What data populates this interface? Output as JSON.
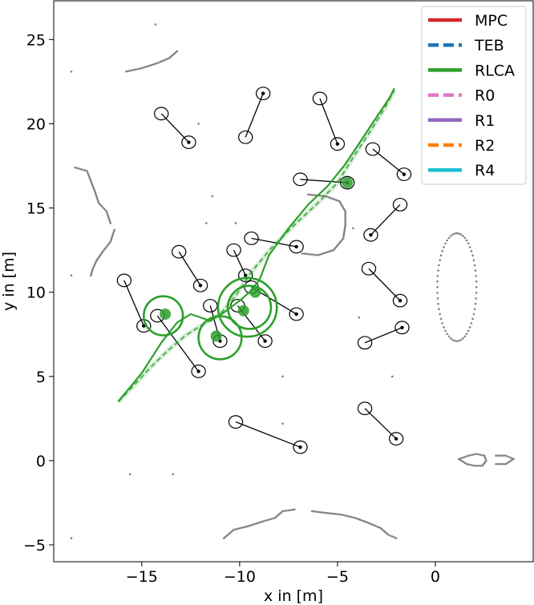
{
  "chart_data": {
    "type": "scatter",
    "xlabel": "x in [m]",
    "ylabel": "y in [m]",
    "xlim": [
      -19.5,
      5.0
    ],
    "ylim": [
      -6.0,
      27.3
    ],
    "xticks": [
      -15,
      -10,
      -5,
      0
    ],
    "xtick_labels": [
      "−15",
      "−10",
      "−5",
      "0"
    ],
    "yticks": [
      -5,
      0,
      5,
      10,
      15,
      20,
      25
    ],
    "ytick_labels": [
      "−5",
      "0",
      "5",
      "10",
      "15",
      "20",
      "25"
    ],
    "grid": false,
    "legend_position": "top-right",
    "legend": [
      {
        "label": "MPC",
        "color": "#d62728",
        "style": "solid"
      },
      {
        "label": "TEB",
        "color": "#1f77b4",
        "style": "dashed"
      },
      {
        "label": "RLCA",
        "color": "#2ca02c",
        "style": "solid"
      },
      {
        "label": "R0",
        "color": "#e377c2",
        "style": "dashed"
      },
      {
        "label": "R1",
        "color": "#9467bd",
        "style": "solid"
      },
      {
        "label": "R2",
        "color": "#ff7f0e",
        "style": "dashed"
      },
      {
        "label": "R4",
        "color": "#17becf",
        "style": "solid"
      }
    ],
    "rlca_path": [
      [
        -16.2,
        3.5
      ],
      [
        -15.0,
        5.2
      ],
      [
        -14.0,
        7.0
      ],
      [
        -13.2,
        8.2
      ],
      [
        -12.5,
        8.7
      ],
      [
        -11.5,
        8.3
      ],
      [
        -10.8,
        8.8
      ],
      [
        -10.0,
        9.5
      ],
      [
        -9.5,
        10.0
      ],
      [
        -9.0,
        10.7
      ],
      [
        -8.8,
        11.3
      ],
      [
        -8.5,
        12.2
      ],
      [
        -7.5,
        13.8
      ],
      [
        -6.5,
        15.2
      ],
      [
        -5.5,
        16.3
      ],
      [
        -4.6,
        17.6
      ],
      [
        -3.8,
        19.0
      ],
      [
        -3.0,
        20.4
      ],
      [
        -2.3,
        21.6
      ],
      [
        -2.1,
        22.1
      ]
    ],
    "rlca_path_alt": [
      [
        -16.2,
        3.5
      ],
      [
        -15.3,
        4.6
      ],
      [
        -14.5,
        5.6
      ],
      [
        -13.7,
        6.5
      ],
      [
        -12.8,
        7.4
      ],
      [
        -12.0,
        8.0
      ],
      [
        -11.0,
        8.7
      ],
      [
        -10.2,
        9.8
      ],
      [
        -9.4,
        11.2
      ],
      [
        -8.4,
        12.6
      ],
      [
        -7.2,
        14.0
      ],
      [
        -6.0,
        15.3
      ],
      [
        -5.0,
        16.5
      ],
      [
        -4.2,
        18.0
      ],
      [
        -3.3,
        19.6
      ],
      [
        -2.6,
        20.9
      ],
      [
        -2.1,
        22.0
      ]
    ],
    "rlca_circles": [
      {
        "x": -13.9,
        "y": 8.6,
        "r": 1.0
      },
      {
        "x": -11.0,
        "y": 7.3,
        "r": 1.1
      },
      {
        "x": -9.6,
        "y": 9.1,
        "r": 1.5
      },
      {
        "x": -9.5,
        "y": 9.1,
        "r": 1.1
      }
    ],
    "rlca_dots": [
      {
        "x": -13.8,
        "y": 8.7
      },
      {
        "x": -11.2,
        "y": 7.4
      },
      {
        "x": -9.8,
        "y": 8.9
      },
      {
        "x": -9.2,
        "y": 10.0
      },
      {
        "x": -4.5,
        "y": 16.5
      }
    ],
    "agents": [
      {
        "x1": -14.0,
        "y1": 20.6,
        "x2": -12.6,
        "y2": 18.9
      },
      {
        "x1": -9.7,
        "y1": 19.2,
        "x2": -8.8,
        "y2": 21.8
      },
      {
        "x1": -5.9,
        "y1": 21.5,
        "x2": -5.0,
        "y2": 18.8
      },
      {
        "x1": -3.2,
        "y1": 18.5,
        "x2": -1.6,
        "y2": 17.0
      },
      {
        "x1": -6.9,
        "y1": 16.7,
        "x2": -4.5,
        "y2": 16.5
      },
      {
        "x1": -1.8,
        "y1": 15.2,
        "x2": -3.3,
        "y2": 13.4
      },
      {
        "x1": -13.1,
        "y1": 12.4,
        "x2": -12.0,
        "y2": 10.4
      },
      {
        "x1": -10.3,
        "y1": 12.5,
        "x2": -9.7,
        "y2": 11.0
      },
      {
        "x1": -9.4,
        "y1": 13.2,
        "x2": -7.1,
        "y2": 12.7
      },
      {
        "x1": -3.4,
        "y1": 11.4,
        "x2": -1.8,
        "y2": 9.5
      },
      {
        "x1": -15.9,
        "y1": 10.7,
        "x2": -14.9,
        "y2": 8.0
      },
      {
        "x1": -11.5,
        "y1": 9.2,
        "x2": -11.0,
        "y2": 7.1
      },
      {
        "x1": -9.4,
        "y1": 10.3,
        "x2": -7.1,
        "y2": 8.7
      },
      {
        "x1": -10.1,
        "y1": 9.2,
        "x2": -8.7,
        "y2": 7.1
      },
      {
        "x1": -14.2,
        "y1": 8.6,
        "x2": -12.1,
        "y2": 5.3
      },
      {
        "x1": -3.6,
        "y1": 7.0,
        "x2": -1.7,
        "y2": 7.9
      },
      {
        "x1": -3.6,
        "y1": 3.1,
        "x2": -2.0,
        "y2": 1.3
      },
      {
        "x1": -10.2,
        "y1": 2.3,
        "x2": -6.9,
        "y2": 0.8
      }
    ],
    "obstacle_arcs": [
      {
        "points": [
          [
            -15.8,
            23.1
          ],
          [
            -15.0,
            23.3
          ],
          [
            -14.2,
            23.6
          ],
          [
            -13.6,
            23.9
          ],
          [
            -13.2,
            24.3
          ]
        ]
      },
      {
        "points": [
          [
            -18.4,
            17.4
          ],
          [
            -17.8,
            17.2
          ],
          [
            -17.6,
            16.6
          ],
          [
            -17.4,
            16.0
          ],
          [
            -17.2,
            15.3
          ],
          [
            -16.8,
            14.8
          ],
          [
            -16.6,
            14.1
          ]
        ]
      },
      {
        "points": [
          [
            -16.4,
            13.7
          ],
          [
            -16.6,
            13.0
          ],
          [
            -17.0,
            12.4
          ],
          [
            -17.3,
            11.9
          ],
          [
            -17.5,
            11.4
          ],
          [
            -17.6,
            11.0
          ]
        ]
      },
      {
        "points": [
          [
            -6.5,
            15.8
          ],
          [
            -5.6,
            15.7
          ],
          [
            -4.9,
            15.4
          ],
          [
            -4.6,
            14.8
          ],
          [
            -4.6,
            14.0
          ],
          [
            -4.7,
            13.2
          ],
          [
            -5.2,
            12.5
          ],
          [
            -6.0,
            12.2
          ],
          [
            -6.8,
            12.3
          ]
        ]
      },
      {
        "points": [
          [
            -10.8,
            -4.6
          ],
          [
            -10.3,
            -4.1
          ],
          [
            -9.6,
            -3.9
          ],
          [
            -8.8,
            -3.6
          ],
          [
            -8.2,
            -3.4
          ],
          [
            -7.8,
            -3.0
          ],
          [
            -7.2,
            -2.9
          ]
        ]
      },
      {
        "points": [
          [
            -6.3,
            -3.0
          ],
          [
            -5.6,
            -3.1
          ],
          [
            -4.8,
            -3.2
          ],
          [
            -4.1,
            -3.4
          ],
          [
            -3.4,
            -3.7
          ],
          [
            -2.8,
            -4.0
          ],
          [
            -2.4,
            -4.4
          ],
          [
            -2.0,
            -4.6
          ]
        ]
      },
      {
        "points": [
          [
            1.2,
            0.1
          ],
          [
            1.7,
            0.3
          ],
          [
            2.1,
            0.4
          ],
          [
            2.5,
            0.3
          ],
          [
            2.6,
            0.0
          ],
          [
            2.4,
            -0.3
          ],
          [
            2.0,
            -0.3
          ],
          [
            1.6,
            -0.2
          ],
          [
            1.2,
            0.1
          ]
        ]
      },
      {
        "points": [
          [
            3.1,
            0.3
          ],
          [
            3.6,
            0.3
          ],
          [
            4.0,
            0.1
          ],
          [
            3.6,
            -0.2
          ],
          [
            3.1,
            -0.2
          ]
        ]
      }
    ],
    "obstacle_ellipse": {
      "x": 1.1,
      "y": 10.3,
      "rx": 1.0,
      "ry": 3.2
    },
    "scatter_dots": [
      [
        -18.6,
        23.1
      ],
      [
        -14.3,
        25.9
      ],
      [
        -12.1,
        20.0
      ],
      [
        -11.7,
        14.1
      ],
      [
        -10.2,
        14.1
      ],
      [
        -18.6,
        11.0
      ],
      [
        -11.4,
        15.7
      ],
      [
        -7.8,
        5.0
      ],
      [
        -4.2,
        13.8
      ],
      [
        -2.2,
        5.0
      ],
      [
        -7.8,
        2.2
      ],
      [
        -15.6,
        -0.8
      ],
      [
        -13.4,
        -0.8
      ],
      [
        -18.6,
        -4.6
      ],
      [
        -3.9,
        8.5
      ]
    ]
  }
}
